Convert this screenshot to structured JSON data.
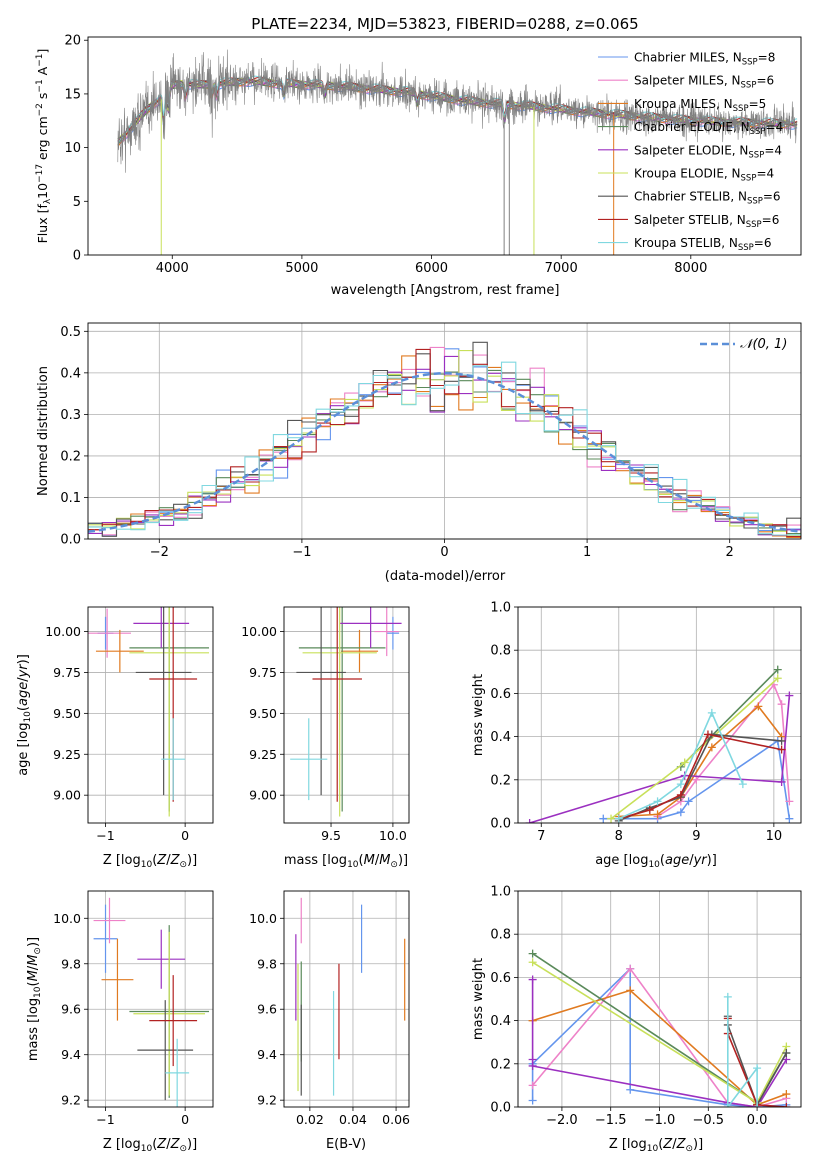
{
  "figure": {
    "title": "PLATE=2234, MJD=53823, FIBERID=0288, z=0.065"
  },
  "colors": {
    "chabrier_miles": "#6495ed",
    "salpeter_miles": "#ee82c8",
    "kroupa_miles": "#e07a20",
    "chabrier_elodie": "#5a8a5a",
    "salpeter_elodie": "#9b30c0",
    "kroupa_elodie": "#c8e05a",
    "chabrier_stelib": "#555555",
    "salpeter_stelib": "#b22222",
    "kroupa_stelib": "#80d8e0",
    "data": "#808080",
    "gauss": "#5b8fd8"
  },
  "chart_data": [
    {
      "id": "spectrum",
      "type": "line",
      "xlabel": "wavelength [Angstrom, rest frame]",
      "ylabel": "Flux [f_λ10^-17 erg cm^-2 s^-1 A^-1]",
      "xlim": [
        3350,
        8850
      ],
      "ylim": [
        0,
        20.3
      ],
      "xticks": [
        4000,
        5000,
        6000,
        7000,
        8000
      ],
      "yticks": [
        0,
        5,
        10,
        15,
        20
      ],
      "grid": false,
      "legend_position": "top-right",
      "series": [
        {
          "name": "Chabrier MILES",
          "nssp": "8"
        },
        {
          "name": "Salpeter MILES",
          "nssp": "6"
        },
        {
          "name": "Kroupa MILES",
          "nssp": "5"
        },
        {
          "name": "Chabrier ELODIE",
          "nssp": "4"
        },
        {
          "name": "Salpeter ELODIE",
          "nssp": "4"
        },
        {
          "name": "Kroupa ELODIE",
          "nssp": "4"
        },
        {
          "name": "Chabrier STELIB",
          "nssp": "6"
        },
        {
          "name": "Salpeter STELIB",
          "nssp": "6"
        },
        {
          "name": "Kroupa STELIB",
          "nssp": "6"
        }
      ],
      "continuum": {
        "x": [
          3580,
          3700,
          3800,
          3900,
          4000,
          4100,
          4200,
          4400,
          4600,
          4800,
          5000,
          5200,
          5500,
          5800,
          6000,
          6300,
          6600,
          6900,
          7200,
          7400,
          7600,
          7900,
          8200,
          8500,
          8800
        ],
        "y": [
          10.5,
          12.0,
          13.5,
          14.5,
          15.8,
          16.0,
          15.8,
          16.0,
          16.2,
          16.0,
          15.9,
          15.8,
          15.5,
          15.2,
          14.8,
          14.3,
          14.0,
          13.7,
          13.3,
          13.1,
          12.9,
          12.6,
          12.4,
          12.3,
          12.2
        ]
      }
    },
    {
      "id": "residuals",
      "type": "line",
      "xlabel": "(data-model)/error",
      "ylabel": "Normed distribution",
      "xlim": [
        -2.5,
        2.5
      ],
      "ylim": [
        0,
        0.52
      ],
      "xticks": [
        -2,
        -1,
        0,
        1,
        2
      ],
      "yticks": [
        0.0,
        0.1,
        0.2,
        0.3,
        0.4,
        0.5
      ],
      "grid": true,
      "gaussian_label": "N(0,1)",
      "legend_position": "top-right",
      "bin_width": 0.1
    },
    {
      "id": "age_vs_z",
      "type": "scatter",
      "xlabel": "Z [log10(Z/Z⊙)]",
      "ylabel": "age  [log10(age/yr)]",
      "xlim": [
        -1.22,
        0.35
      ],
      "ylim": [
        8.83,
        10.15
      ],
      "xticks": [
        -1,
        0
      ],
      "xticklabels": [
        "−1",
        "0"
      ],
      "yticks": [
        9.0,
        9.25,
        9.5,
        9.75,
        10.0
      ],
      "yticklabels": [
        "9.00",
        "9.25",
        "9.50",
        "9.75",
        "10.00"
      ],
      "grid": true,
      "points": [
        {
          "series": 0,
          "x": -1.0,
          "y": 9.99,
          "xerr": 0.1,
          "yerr": 0.1
        },
        {
          "series": 1,
          "x": -0.98,
          "y": 9.99,
          "xerr": 0.3,
          "yerr": 0.15
        },
        {
          "series": 2,
          "x": -0.82,
          "y": 9.88,
          "xerr": 0.3,
          "yerr": 0.13
        },
        {
          "series": 3,
          "x": -0.2,
          "y": 9.9,
          "xerr": 0.5,
          "yerr": 1.0
        },
        {
          "series": 4,
          "x": -0.3,
          "y": 10.05,
          "xerr": 0.35,
          "yerr": 0.15
        },
        {
          "series": 5,
          "x": -0.2,
          "y": 9.87,
          "xerr": 0.5,
          "yerr": 1.0
        },
        {
          "series": 6,
          "x": -0.27,
          "y": 9.75,
          "xerr": 0.35,
          "yerr": 0.75
        },
        {
          "series": 7,
          "x": -0.15,
          "y": 9.71,
          "xerr": 0.3,
          "yerr": 0.75
        },
        {
          "series": 8,
          "x": -0.15,
          "y": 9.22,
          "xerr": 0.15,
          "yerr": 0.25
        }
      ]
    },
    {
      "id": "age_vs_mass",
      "type": "scatter",
      "xlabel": "mass [log10(M/M⊙)]",
      "ylabel": "",
      "xlim": [
        9.12,
        10.13
      ],
      "ylim": [
        8.83,
        10.15
      ],
      "xticks": [
        9.5,
        10.0
      ],
      "xticklabels": [
        "9.5",
        "10.0"
      ],
      "yticks": [
        9.0,
        9.25,
        9.5,
        9.75,
        10.0
      ],
      "yticklabels": [
        "9.00",
        "9.25",
        "9.50",
        "9.75",
        "10.00"
      ],
      "grid": true,
      "points": [
        {
          "series": 0,
          "x": 10.0,
          "y": 9.99,
          "xerr": 0.05,
          "yerr": 0.1
        },
        {
          "series": 1,
          "x": 9.95,
          "y": 10.0,
          "xerr": 0.1,
          "yerr": 0.15
        },
        {
          "series": 2,
          "x": 9.73,
          "y": 9.88,
          "xerr": 0.15,
          "yerr": 0.13
        },
        {
          "series": 3,
          "x": 9.59,
          "y": 9.9,
          "xerr": 0.35,
          "yerr": 1.0
        },
        {
          "series": 4,
          "x": 9.82,
          "y": 10.05,
          "xerr": 0.25,
          "yerr": 0.15
        },
        {
          "series": 5,
          "x": 9.57,
          "y": 9.87,
          "xerr": 0.3,
          "yerr": 1.0
        },
        {
          "series": 6,
          "x": 9.42,
          "y": 9.75,
          "xerr": 0.2,
          "yerr": 0.75
        },
        {
          "series": 7,
          "x": 9.55,
          "y": 9.71,
          "xerr": 0.2,
          "yerr": 0.75
        },
        {
          "series": 8,
          "x": 9.32,
          "y": 9.22,
          "xerr": 0.15,
          "yerr": 0.25
        }
      ]
    },
    {
      "id": "weight_vs_age",
      "type": "line",
      "xlabel": "age  [log10(age/yr)]",
      "ylabel": "mass weight",
      "xlim": [
        6.7,
        10.35
      ],
      "ylim": [
        0,
        1.0
      ],
      "xticks": [
        7,
        8,
        9,
        10
      ],
      "yticks": [
        0.0,
        0.2,
        0.4,
        0.6,
        0.8,
        1.0
      ],
      "grid": true,
      "series": [
        {
          "x": [
            7.8,
            8.5,
            8.8,
            8.9,
            10.05,
            10.2
          ],
          "y": [
            0.02,
            0.02,
            0.05,
            0.1,
            0.38,
            0.02
          ]
        },
        {
          "x": [
            8.5,
            8.8,
            9.0,
            10.0,
            10.1,
            10.2
          ],
          "y": [
            0.03,
            0.1,
            0.2,
            0.64,
            0.55,
            0.1
          ]
        },
        {
          "x": [
            8.0,
            8.5,
            8.8,
            9.2,
            9.8,
            10.1
          ],
          "y": [
            0.03,
            0.04,
            0.12,
            0.35,
            0.54,
            0.4
          ]
        },
        {
          "x": [
            8.8,
            10.05
          ],
          "y": [
            0.26,
            0.71
          ]
        },
        {
          "x": [
            6.85,
            8.85,
            10.1,
            10.2
          ],
          "y": [
            0.0,
            0.22,
            0.19,
            0.59
          ]
        },
        {
          "x": [
            7.9,
            8.85,
            10.05
          ],
          "y": [
            0.02,
            0.28,
            0.67
          ]
        },
        {
          "x": [
            8.0,
            8.4,
            8.8,
            9.2,
            10.1
          ],
          "y": [
            0.01,
            0.07,
            0.12,
            0.41,
            0.38
          ]
        },
        {
          "x": [
            8.0,
            8.4,
            8.8,
            9.15,
            10.1
          ],
          "y": [
            0.02,
            0.06,
            0.13,
            0.41,
            0.34
          ]
        },
        {
          "x": [
            8.0,
            8.5,
            8.8,
            9.2,
            9.6
          ],
          "y": [
            0.02,
            0.1,
            0.18,
            0.51,
            0.18
          ]
        }
      ]
    },
    {
      "id": "mass_vs_z",
      "type": "scatter",
      "xlabel": "Z [log10(Z/Z⊙)]",
      "ylabel": "mass [log10(M/M⊙)]",
      "xlim": [
        -1.22,
        0.35
      ],
      "ylim": [
        9.17,
        10.12
      ],
      "xticks": [
        -1,
        0
      ],
      "xticklabels": [
        "−1",
        "0"
      ],
      "yticks": [
        9.2,
        9.4,
        9.6,
        9.8,
        10.0
      ],
      "yticklabels": [
        "9.2",
        "9.4",
        "9.6",
        "9.8",
        "10.0"
      ],
      "grid": true,
      "points": [
        {
          "series": 0,
          "x": -1.0,
          "y": 9.91,
          "xerr": 0.15,
          "yerr": 0.15
        },
        {
          "series": 1,
          "x": -0.95,
          "y": 9.99,
          "xerr": 0.2,
          "yerr": 0.1
        },
        {
          "series": 2,
          "x": -0.85,
          "y": 9.73,
          "xerr": 0.2,
          "yerr": 0.18
        },
        {
          "series": 3,
          "x": -0.2,
          "y": 9.59,
          "xerr": 0.5,
          "yerr": 0.38
        },
        {
          "series": 4,
          "x": -0.3,
          "y": 9.82,
          "xerr": 0.3,
          "yerr": 0.13
        },
        {
          "series": 5,
          "x": -0.2,
          "y": 9.58,
          "xerr": 0.45,
          "yerr": 0.36
        },
        {
          "series": 6,
          "x": -0.25,
          "y": 9.42,
          "xerr": 0.35,
          "yerr": 0.22
        },
        {
          "series": 7,
          "x": -0.15,
          "y": 9.55,
          "xerr": 0.3,
          "yerr": 0.2
        },
        {
          "series": 8,
          "x": -0.1,
          "y": 9.32,
          "xerr": 0.15,
          "yerr": 0.15
        }
      ]
    },
    {
      "id": "mass_vs_ebv",
      "type": "scatter",
      "xlabel": "E(B-V)",
      "ylabel": "",
      "xlim": [
        0.008,
        0.066
      ],
      "ylim": [
        9.17,
        10.12
      ],
      "xticks": [
        0.02,
        0.04,
        0.06
      ],
      "xticklabels": [
        "0.02",
        "0.04",
        "0.06"
      ],
      "yticks": [
        9.2,
        9.4,
        9.6,
        9.8,
        10.0
      ],
      "yticklabels": [
        "9.2",
        "9.4",
        "9.6",
        "9.8",
        "10.0"
      ],
      "grid": true,
      "points": [
        {
          "series": 0,
          "x": 0.044,
          "y": 9.91,
          "yerr": 0.15
        },
        {
          "series": 1,
          "x": 0.016,
          "y": 9.99,
          "yerr": 0.1
        },
        {
          "series": 2,
          "x": 0.064,
          "y": 9.73,
          "yerr": 0.18
        },
        {
          "series": 3,
          "x": 0.016,
          "y": 9.59,
          "yerr": 0.22
        },
        {
          "series": 4,
          "x": 0.0135,
          "y": 9.74,
          "yerr": 0.19
        },
        {
          "series": 5,
          "x": 0.0145,
          "y": 9.52,
          "yerr": 0.28
        },
        {
          "series": 6,
          "x": 0.016,
          "y": 9.42,
          "yerr": 0.2
        },
        {
          "series": 7,
          "x": 0.0335,
          "y": 9.59,
          "yerr": 0.21
        },
        {
          "series": 8,
          "x": 0.031,
          "y": 9.45,
          "yerr": 0.23
        }
      ]
    },
    {
      "id": "weight_vs_z",
      "type": "line",
      "xlabel": "Z [log10(Z/Z⊙)]",
      "ylabel": "mass weight",
      "xlim": [
        -2.45,
        0.45
      ],
      "ylim": [
        0,
        1.0
      ],
      "xticks": [
        -2.0,
        -1.5,
        -1.0,
        -0.5,
        0.0
      ],
      "xticklabels": [
        "−2.0",
        "−1.5",
        "−1.0",
        "−0.5",
        "0.0"
      ],
      "yticks": [
        0.0,
        0.2,
        0.4,
        0.6,
        0.8,
        1.0
      ],
      "grid": true,
      "series": [
        {
          "x": [
            -2.3,
            -2.3,
            -1.3,
            -1.3,
            -0.3,
            0.0,
            0.3
          ],
          "y": [
            0.03,
            0.2,
            0.64,
            0.08,
            0.01,
            0.0,
            0.01
          ]
        },
        {
          "x": [
            -2.3,
            -1.3,
            -0.3,
            0.0,
            0.3
          ],
          "y": [
            0.1,
            0.64,
            0.02,
            0.0,
            0.04
          ]
        },
        {
          "x": [
            -2.3,
            -2.3,
            -1.3,
            0.0,
            0.3
          ],
          "y": [
            0.4,
            0.4,
            0.54,
            0.01,
            0.06
          ]
        },
        {
          "x": [
            -2.3,
            0.0,
            0.3
          ],
          "y": [
            0.71,
            0.02,
            0.25
          ]
        },
        {
          "x": [
            -2.3,
            -2.3,
            -2.3,
            -0.3,
            0.0,
            0.3
          ],
          "y": [
            0.59,
            0.22,
            0.19,
            0.02,
            0.0,
            0.22
          ]
        },
        {
          "x": [
            -2.3,
            0.0,
            0.3
          ],
          "y": [
            0.67,
            0.02,
            0.28
          ]
        },
        {
          "x": [
            -0.3,
            -0.3,
            0.0,
            0.3
          ],
          "y": [
            0.42,
            0.38,
            0.01,
            0.25
          ]
        },
        {
          "x": [
            -0.3,
            -0.3,
            0.0,
            0.3
          ],
          "y": [
            0.41,
            0.34,
            0.01,
            0.0
          ]
        },
        {
          "x": [
            -0.3,
            -0.3,
            0.0,
            0.0
          ],
          "y": [
            0.51,
            0.0,
            0.18,
            0.0
          ]
        }
      ]
    }
  ]
}
